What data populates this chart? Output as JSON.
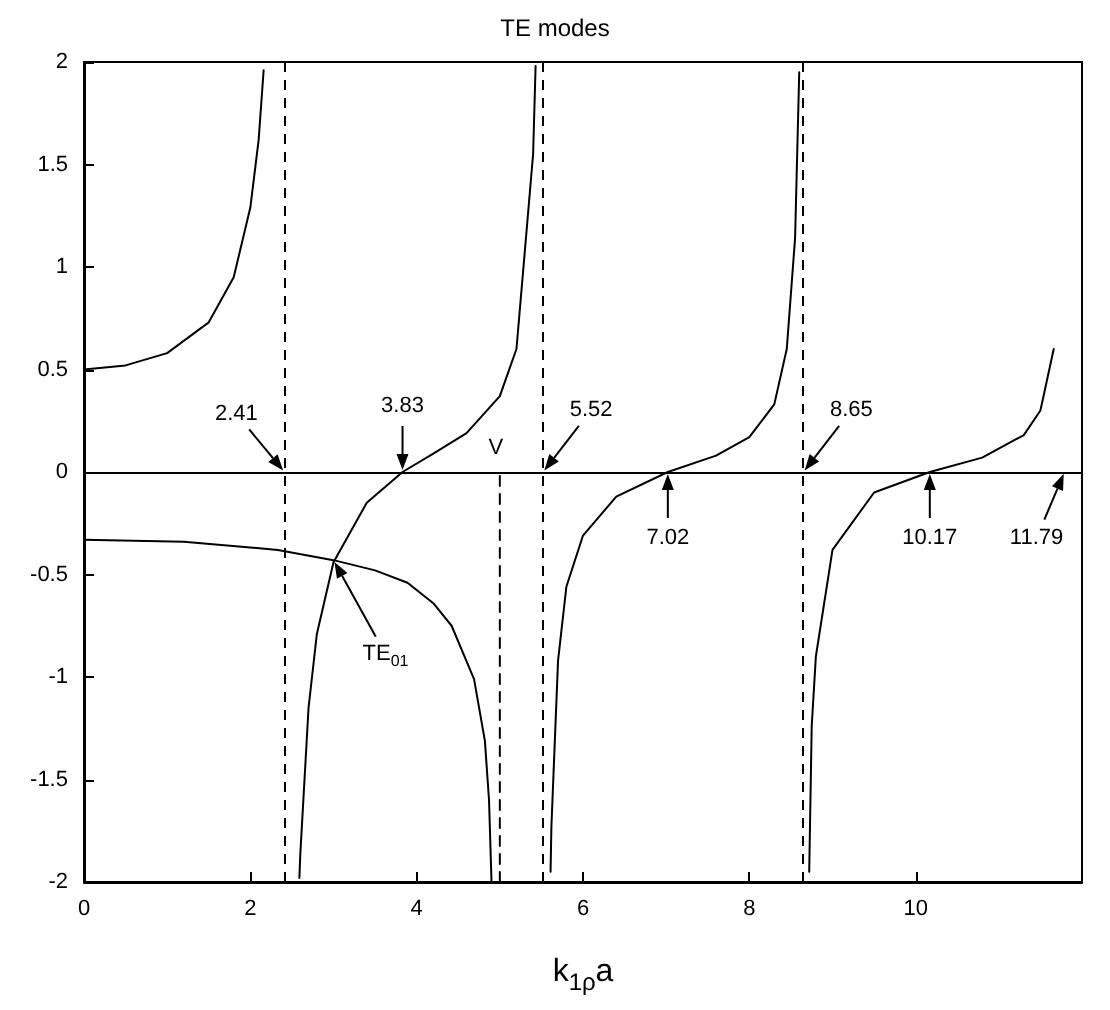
{
  "chart_data": {
    "type": "line",
    "title": "TE modes",
    "xlabel": "k$_{1ρ}$a",
    "xlim": [
      0,
      12
    ],
    "xticks": [
      0,
      2,
      4,
      6,
      8,
      10
    ],
    "ylim": [
      -2,
      2
    ],
    "yticks": [
      -2,
      -1.5,
      -1,
      -0.5,
      0,
      0.5,
      1,
      1.5,
      2
    ],
    "marker": "none",
    "line_style": "solid",
    "series": [
      {
        "color": "#000000",
        "x": [
          0,
          0.5,
          1,
          1.5,
          1.8,
          2,
          2.1,
          2.16
        ],
        "values": [
          0.5,
          0.52,
          0.58,
          0.73,
          0.95,
          1.29,
          1.62,
          1.96
        ]
      },
      {
        "color": "#000000",
        "x": [
          2.59,
          2.6,
          2.7,
          2.8,
          3,
          3.4,
          3.83,
          4.2,
          4.6,
          5,
          5.2,
          5.4,
          5.43
        ],
        "values": [
          -1.98,
          -1.87,
          -1.15,
          -0.79,
          -0.44,
          -0.15,
          0,
          0.09,
          0.19,
          0.37,
          0.6,
          1.55,
          1.98
        ]
      },
      {
        "color": "#000000",
        "x": [
          5.61,
          5.62,
          5.7,
          5.8,
          6,
          6.4,
          7.02,
          7.6,
          8,
          8.3,
          8.45,
          8.55,
          8.6
        ],
        "values": [
          -1.95,
          -1.73,
          -0.92,
          -0.56,
          -0.31,
          -0.12,
          0,
          0.08,
          0.17,
          0.33,
          0.6,
          1.14,
          1.95
        ]
      },
      {
        "color": "#000000",
        "x": [
          8.72,
          8.75,
          8.8,
          9,
          9.5,
          10.17,
          10.8,
          11.3,
          11.5,
          11.66
        ],
        "values": [
          -1.95,
          -1.24,
          -0.9,
          -0.38,
          -0.1,
          0,
          0.07,
          0.18,
          0.3,
          0.6
        ]
      },
      {
        "color": "#000000",
        "x": [
          0,
          1.2,
          2.33,
          3,
          3.5,
          3.89,
          4.2,
          4.42,
          4.69,
          4.82,
          4.87,
          4.9
        ],
        "values": [
          -0.33,
          -0.34,
          -0.38,
          -0.43,
          -0.48,
          -0.54,
          -0.64,
          -0.75,
          -1.01,
          -1.31,
          -1.6,
          -2
        ]
      },
      {
        "color": "#000000",
        "x": [
          5,
          5
        ],
        "values": [
          -2,
          0
        ],
        "line_style": "dashed"
      }
    ],
    "ref_lines": [
      {
        "axis": "y",
        "value": 0,
        "line_style": "solid",
        "color": "#000000"
      },
      {
        "axis": "x",
        "value": 2.405,
        "line_style": "dashed",
        "color": "#000000"
      },
      {
        "axis": "x",
        "value": 5.52,
        "line_style": "dashed",
        "color": "#000000"
      },
      {
        "axis": "x",
        "value": 8.654,
        "line_style": "dashed",
        "color": "#000000"
      }
    ],
    "annotations": [
      {
        "text": "2.41",
        "x": 2.41,
        "y": 0
      },
      {
        "text": "3.83",
        "x": 3.83,
        "y": 0
      },
      {
        "text": "5.52",
        "x": 5.52,
        "y": 0
      },
      {
        "text": "7.02",
        "x": 7.02,
        "y": 0
      },
      {
        "text": "8.65",
        "x": 8.65,
        "y": 0
      },
      {
        "text": "10.17",
        "x": 10.17,
        "y": 0
      },
      {
        "text": "11.79",
        "x": 11.79,
        "y": 0
      },
      {
        "text": "V",
        "x": 5,
        "y": 0
      },
      {
        "text": "TE$_{01}$",
        "x": 3,
        "y": -0.43
      }
    ]
  }
}
